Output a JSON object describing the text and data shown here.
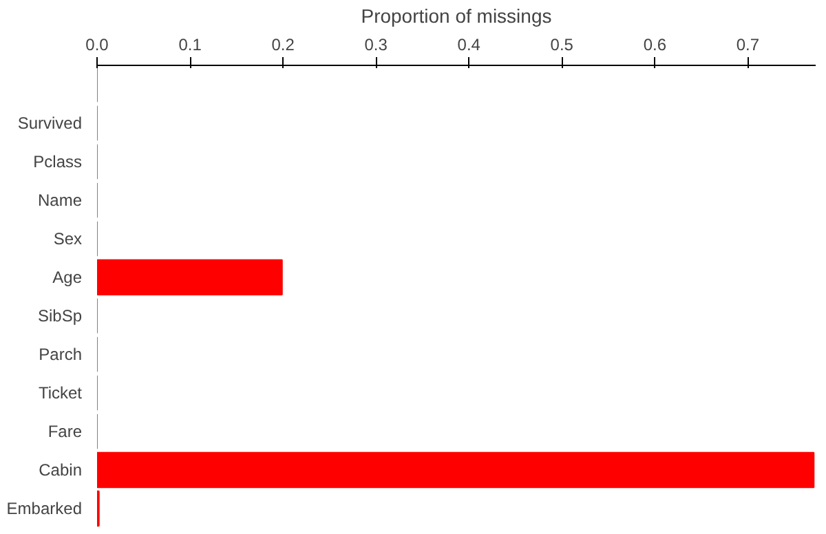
{
  "chart_data": {
    "type": "bar",
    "orientation": "horizontal",
    "xlabel": "Proportion of missings",
    "categories": [
      null,
      "Survived",
      "Pclass",
      "Name",
      "Sex",
      "Age",
      "SibSp",
      "Parch",
      "Ticket",
      "Fare",
      "Cabin",
      "Embarked"
    ],
    "values": [
      0,
      0,
      0,
      0,
      0,
      0.199,
      0,
      0,
      0,
      0,
      0.771,
      0.002
    ],
    "colors": [
      "#808080",
      "#808080",
      "#808080",
      "#808080",
      "#808080",
      "#ff0000",
      "#808080",
      "#808080",
      "#808080",
      "#808080",
      "#ff0000",
      "#ff0000"
    ],
    "xlim": [
      0,
      0.773
    ],
    "xticks": [
      {
        "value": 0,
        "label": "0.0"
      },
      0.1,
      0.2,
      0.3,
      0.4,
      0.5,
      0.6,
      0.7
    ],
    "grid": false
  }
}
